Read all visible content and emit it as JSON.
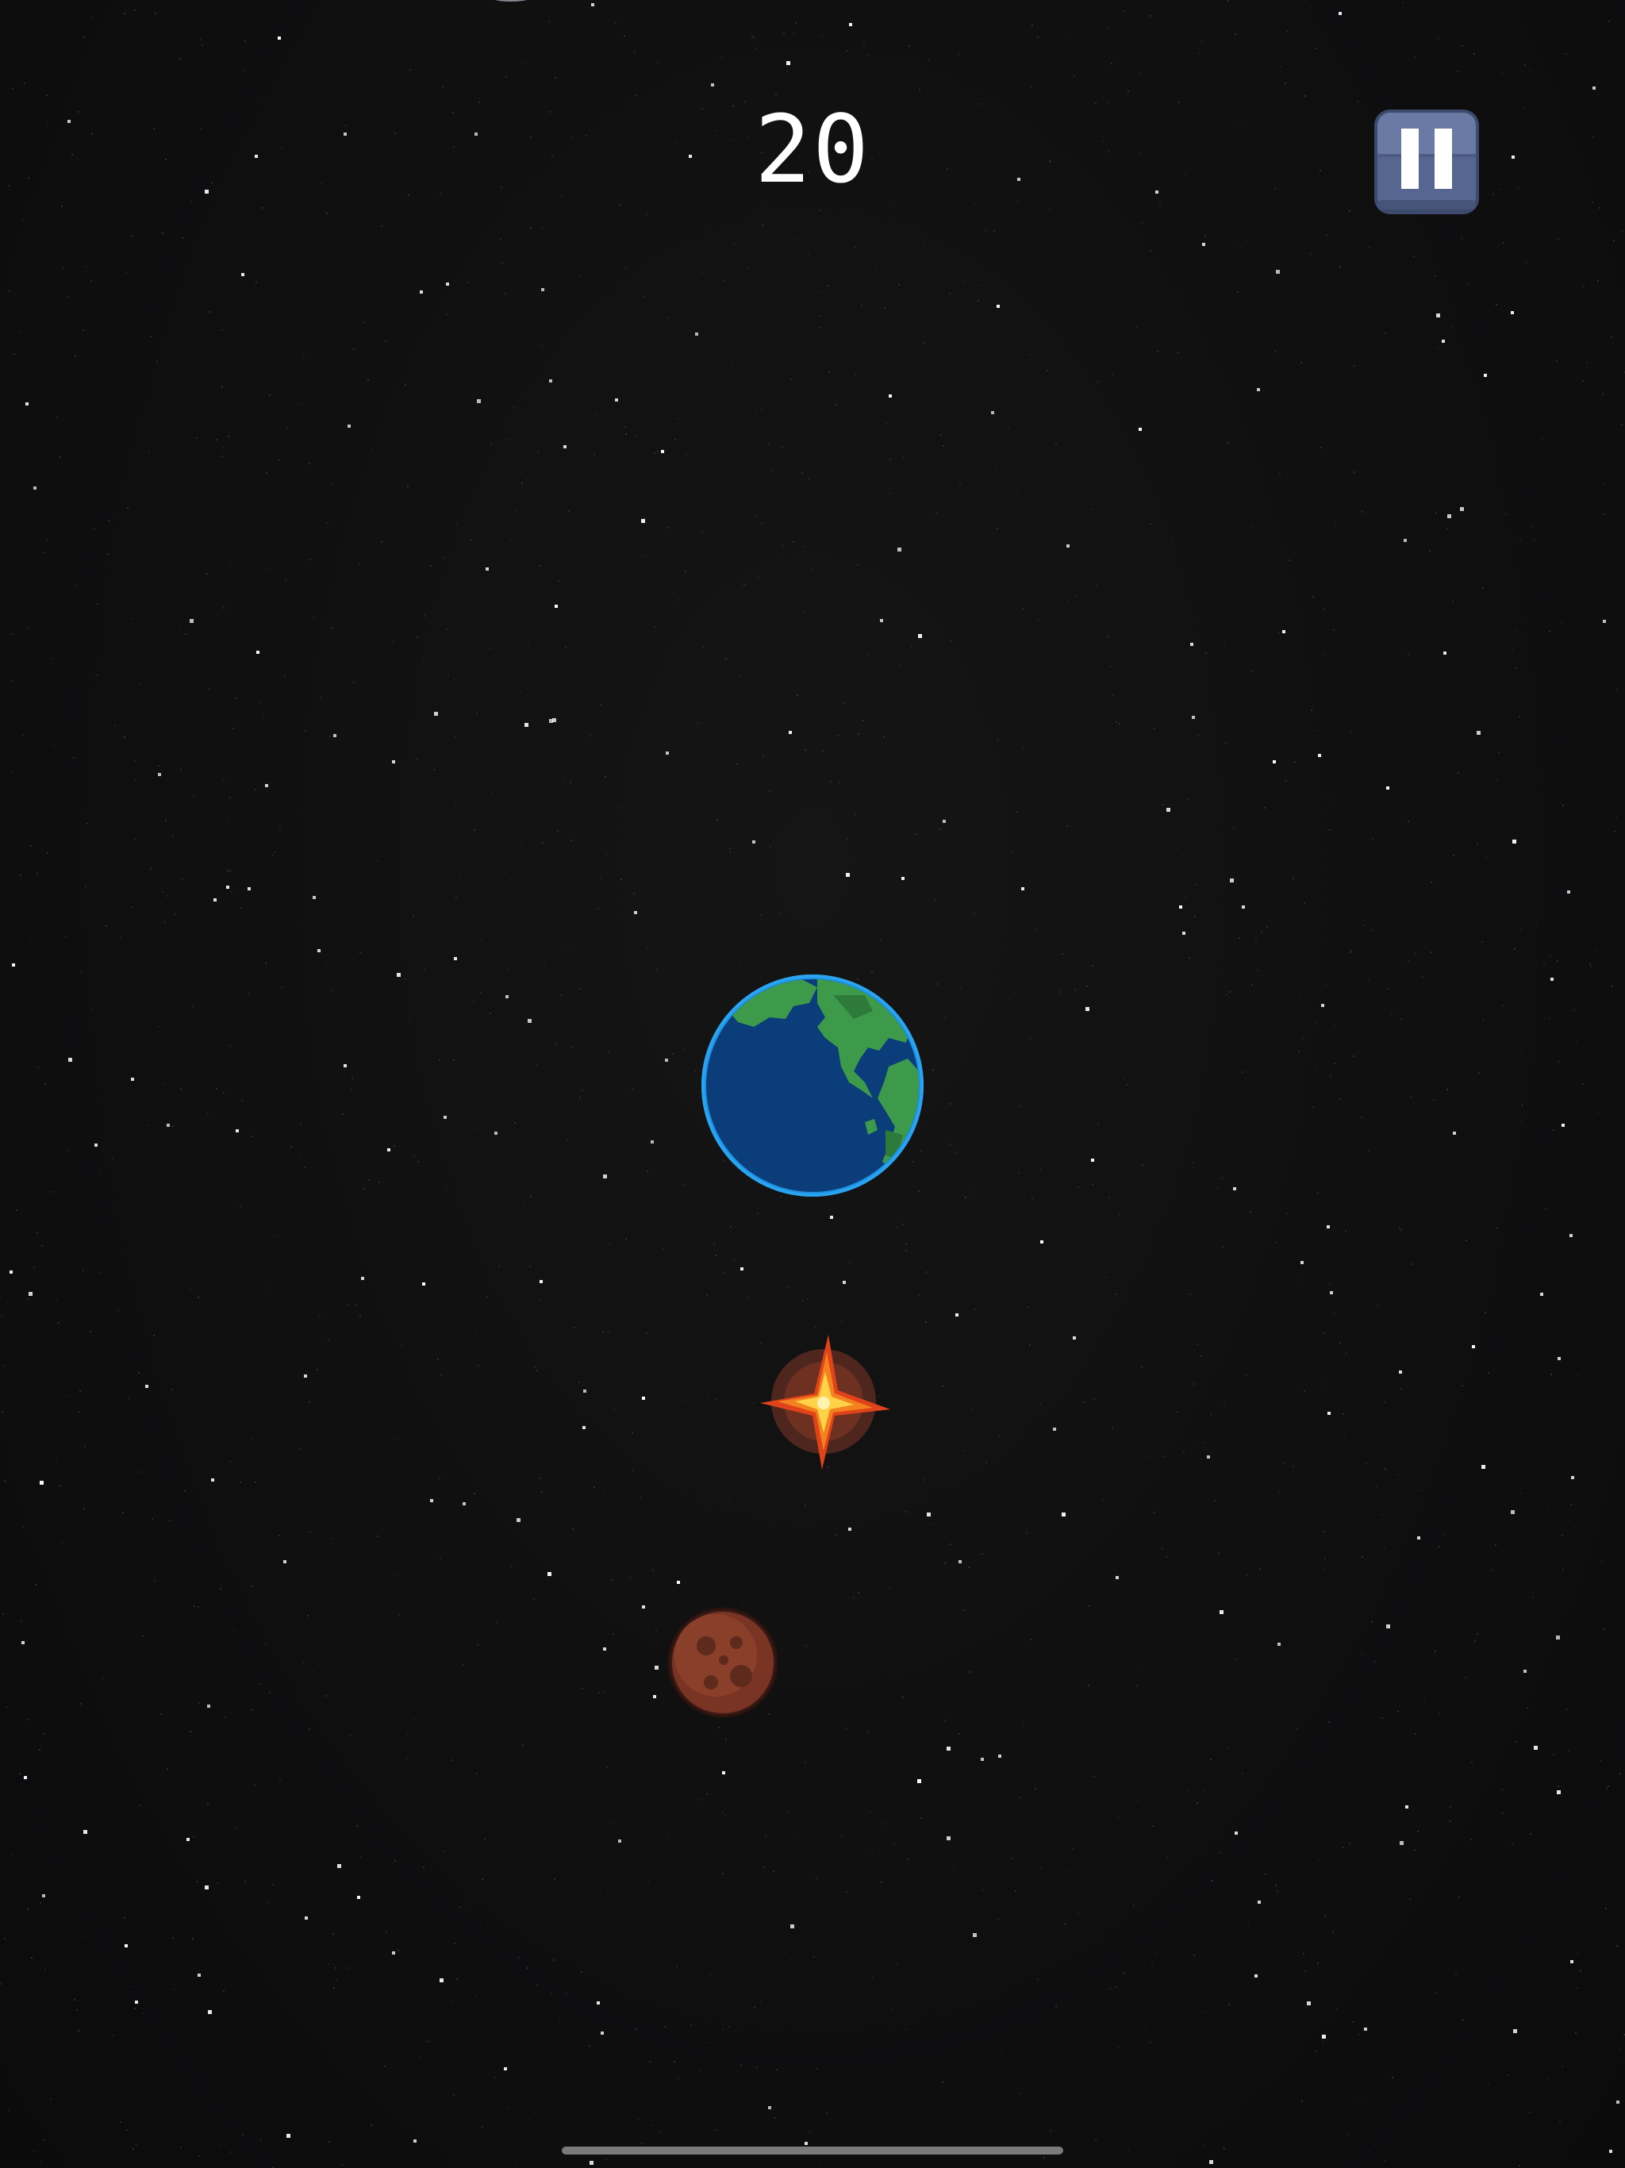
{
  "hud": {
    "score": "20"
  },
  "icons": {
    "pause": "pause-icon",
    "earth": "earth-icon",
    "explosion": "explosion-icon",
    "meteor": "meteor-icon"
  },
  "colors": {
    "background": "#0e0e0f",
    "star": "#ffffff",
    "ocean": "#0b3d7a",
    "land": "#3c9a4a",
    "atmosphere": "#1e90e0",
    "pause_button": "#566690",
    "explosion_core": "#ffd24a",
    "meteor": "#7a3424"
  }
}
